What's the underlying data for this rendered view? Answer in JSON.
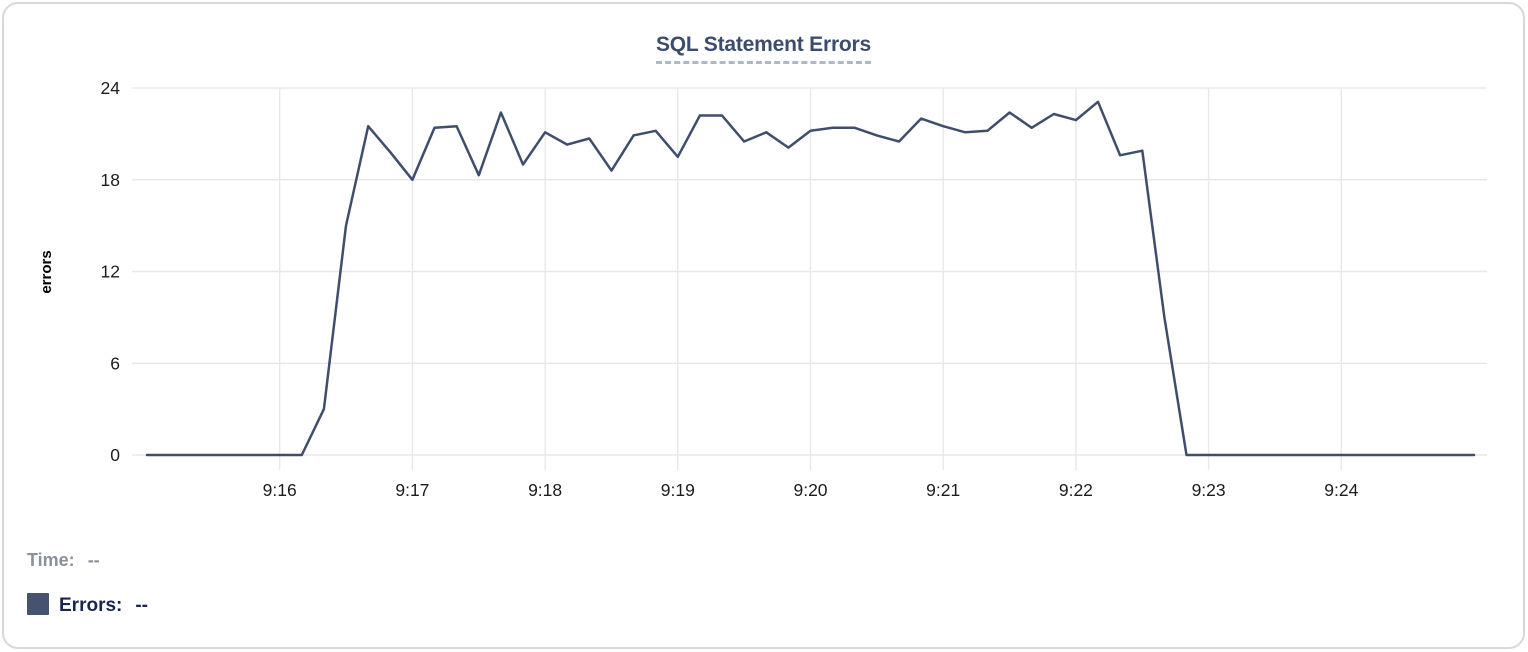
{
  "chart": {
    "title": "SQL Statement Errors"
  },
  "legend": {
    "time_label": "Time:",
    "time_value": "--",
    "errors_label": "Errors:",
    "errors_value": "--",
    "swatch_color": "#45536f"
  },
  "colors": {
    "line": "#3e4e6c",
    "title": "#3c4c6e",
    "title_underline": "#aeb8cb",
    "grid": "#e8e8e8",
    "tick_text": "#1c1c1c",
    "legend_time_text": "#8b919c",
    "legend_errors_text": "#19264f",
    "card_border": "#d8d8d8"
  },
  "chart_data": {
    "type": "line",
    "title": "SQL Statement Errors",
    "xlabel": "",
    "ylabel": "errors",
    "series_name": "Errors",
    "x": [
      "9:15:00",
      "9:15:10",
      "9:15:20",
      "9:15:30",
      "9:15:40",
      "9:15:50",
      "9:16:00",
      "9:16:10",
      "9:16:20",
      "9:16:30",
      "9:16:40",
      "9:16:50",
      "9:17:00",
      "9:17:10",
      "9:17:20",
      "9:17:30",
      "9:17:40",
      "9:17:50",
      "9:18:00",
      "9:18:10",
      "9:18:20",
      "9:18:30",
      "9:18:40",
      "9:18:50",
      "9:19:00",
      "9:19:10",
      "9:19:20",
      "9:19:30",
      "9:19:40",
      "9:19:50",
      "9:20:00",
      "9:20:10",
      "9:20:20",
      "9:20:30",
      "9:20:40",
      "9:20:50",
      "9:21:00",
      "9:21:10",
      "9:21:20",
      "9:21:30",
      "9:21:40",
      "9:21:50",
      "9:22:00",
      "9:22:10",
      "9:22:20",
      "9:22:30",
      "9:22:40",
      "9:22:50",
      "9:23:00",
      "9:23:10",
      "9:23:20",
      "9:23:30",
      "9:23:40",
      "9:23:50",
      "9:24:00",
      "9:24:10",
      "9:24:20",
      "9:24:30",
      "9:24:40",
      "9:24:50",
      "9:25:00"
    ],
    "values": [
      0,
      0,
      0,
      0,
      0,
      0,
      0,
      0,
      3,
      15,
      21.5,
      19.8,
      18,
      21.4,
      21.5,
      18.3,
      22.4,
      19,
      21.1,
      20.3,
      20.7,
      18.6,
      20.9,
      21.2,
      19.5,
      22.2,
      22.2,
      20.5,
      21.1,
      20.1,
      21.2,
      21.4,
      21.4,
      20.9,
      20.5,
      22,
      21.5,
      21.1,
      21.2,
      22.4,
      21.4,
      22.3,
      21.9,
      23.1,
      19.6,
      19.9,
      9,
      0,
      0,
      0,
      0,
      0,
      0,
      0,
      0,
      0,
      0,
      0,
      0,
      0,
      0
    ],
    "xtick_labels": [
      "9:16",
      "9:17",
      "9:18",
      "9:19",
      "9:20",
      "9:21",
      "9:22",
      "9:23",
      "9:24"
    ],
    "yticks": [
      0,
      6,
      12,
      18,
      24
    ],
    "ylim": [
      0,
      24
    ],
    "xlim": [
      "9:15:00",
      "9:25:00"
    ],
    "grid": true,
    "legend_position": "bottom-left"
  }
}
